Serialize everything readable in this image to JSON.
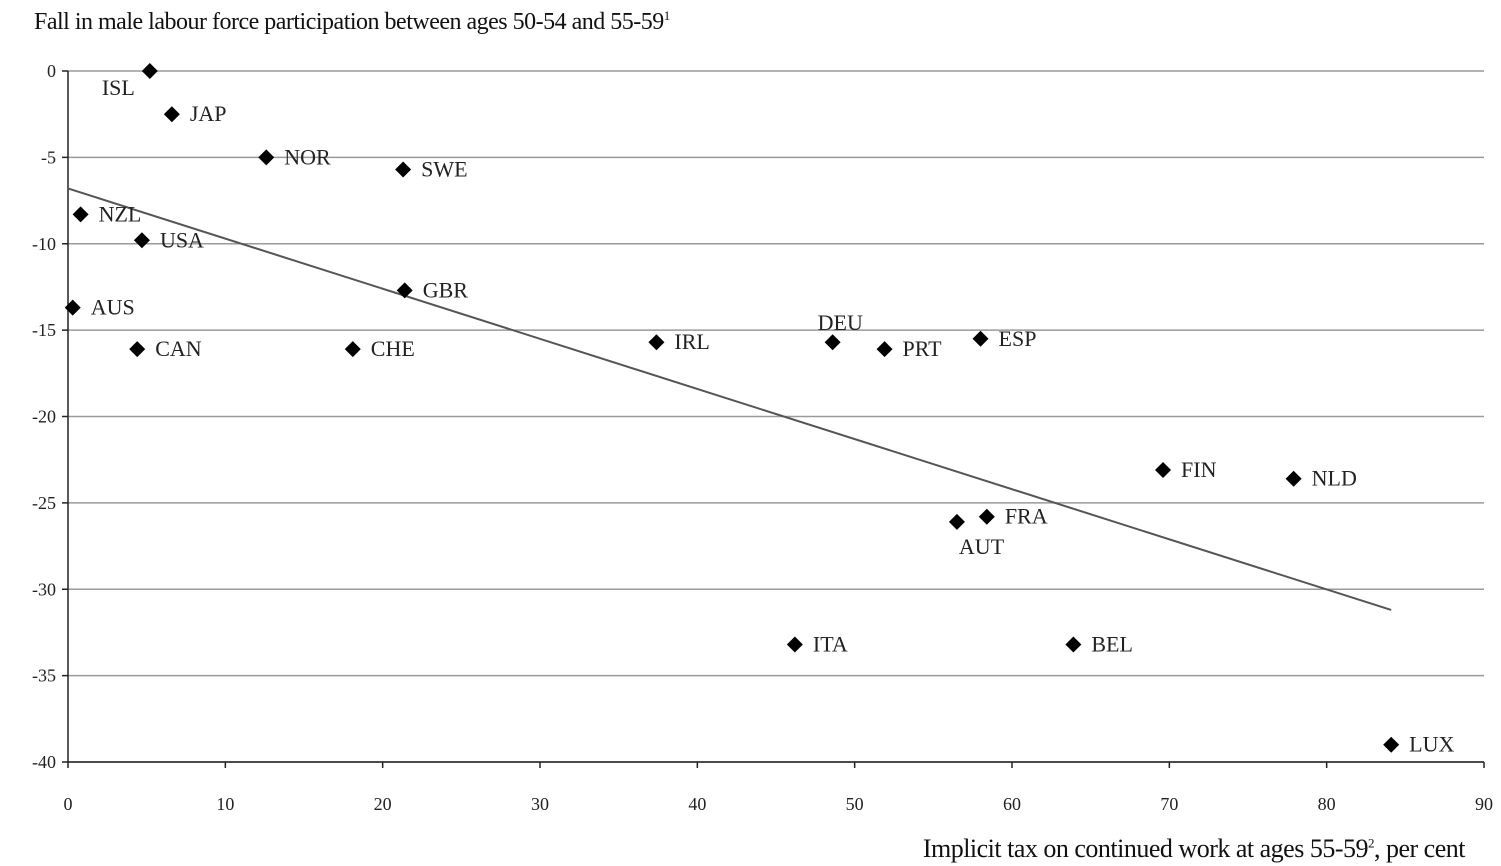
{
  "chart_data": {
    "type": "scatter",
    "title": "Fall in male labour force participation between ages 50-54 and 55-59",
    "title_note": "1",
    "xlabel": "Implicit tax on continued work at ages 55-59",
    "xlabel_note": "2",
    "xlabel_suffix": ", per cent",
    "xlim": [
      0,
      90
    ],
    "ylim": [
      -40,
      0
    ],
    "xticks": [
      0,
      10,
      20,
      30,
      40,
      50,
      60,
      70,
      80,
      90
    ],
    "yticks": [
      0,
      -5,
      -10,
      -15,
      -20,
      -25,
      -30,
      -35,
      -40
    ],
    "grid": "horizontal",
    "marker": "diamond",
    "points": [
      {
        "label": "ISL",
        "x": 5.2,
        "y": 0
      },
      {
        "label": "JAP",
        "x": 6.6,
        "y": -2.5
      },
      {
        "label": "NOR",
        "x": 12.6,
        "y": -5
      },
      {
        "label": "SWE",
        "x": 21.3,
        "y": -5.7
      },
      {
        "label": "NZL",
        "x": 0.8,
        "y": -8.3
      },
      {
        "label": "USA",
        "x": 4.7,
        "y": -9.8
      },
      {
        "label": "GBR",
        "x": 21.4,
        "y": -12.7
      },
      {
        "label": "AUS",
        "x": 0.3,
        "y": -13.7
      },
      {
        "label": "CAN",
        "x": 4.4,
        "y": -16.1
      },
      {
        "label": "CHE",
        "x": 18.1,
        "y": -16.1
      },
      {
        "label": "IRL",
        "x": 37.4,
        "y": -15.7
      },
      {
        "label": "DEU",
        "x": 48.6,
        "y": -15.7
      },
      {
        "label": "PRT",
        "x": 51.9,
        "y": -16.1
      },
      {
        "label": "ESP",
        "x": 58.0,
        "y": -15.5
      },
      {
        "label": "FIN",
        "x": 69.6,
        "y": -23.1
      },
      {
        "label": "NLD",
        "x": 77.9,
        "y": -23.6
      },
      {
        "label": "FRA",
        "x": 58.4,
        "y": -25.8
      },
      {
        "label": "AUT",
        "x": 56.5,
        "y": -26.1
      },
      {
        "label": "ITA",
        "x": 46.2,
        "y": -33.2
      },
      {
        "label": "BEL",
        "x": 63.9,
        "y": -33.2
      },
      {
        "label": "LUX",
        "x": 84.1,
        "y": -39.0
      }
    ],
    "trendline": {
      "x": [
        0,
        84.1
      ],
      "y": [
        -6.8,
        -31.2
      ]
    }
  }
}
